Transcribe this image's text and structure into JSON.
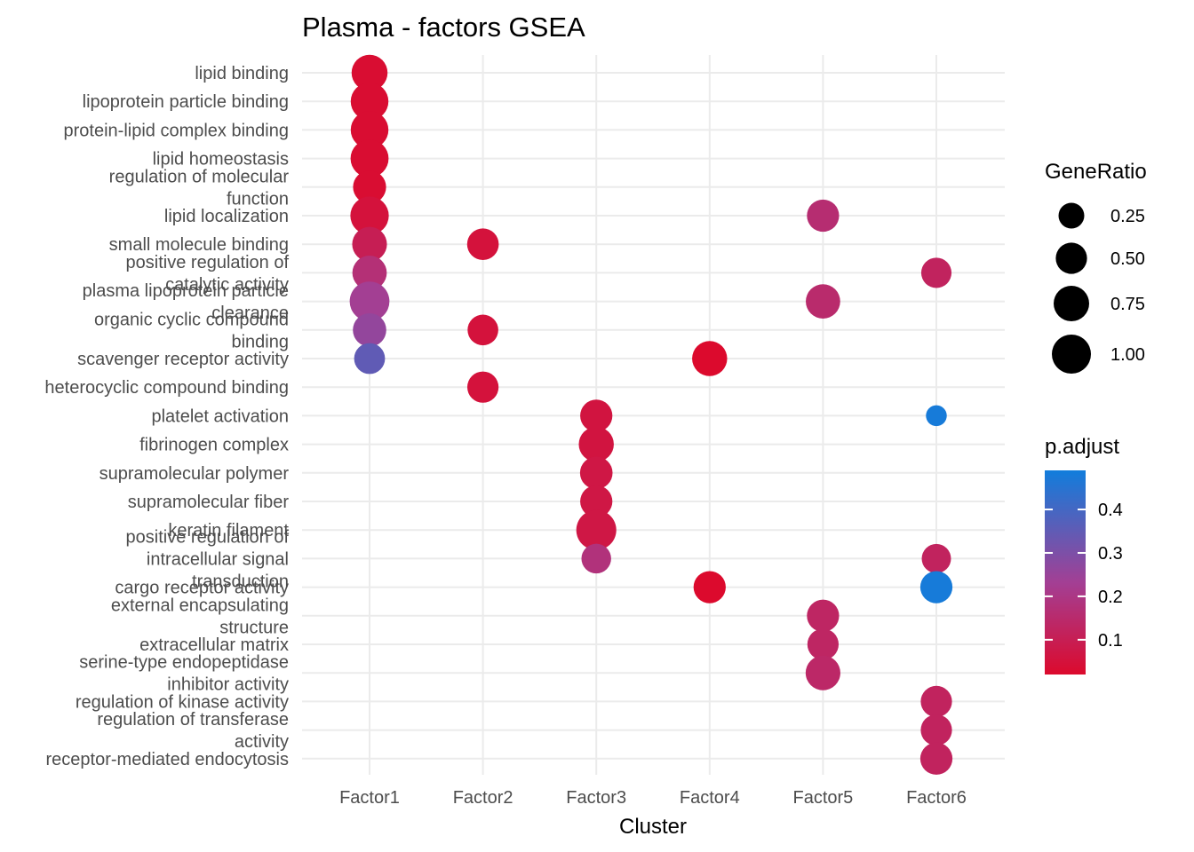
{
  "chart_data": {
    "type": "scatter",
    "title": "Plasma - factors GSEA",
    "xlabel": "Cluster",
    "ylabel": "",
    "clusters": [
      "Factor1",
      "Factor2",
      "Factor3",
      "Factor4",
      "Factor5",
      "Factor6"
    ],
    "terms": [
      [
        "lipid binding"
      ],
      [
        "lipoprotein particle binding"
      ],
      [
        "protein-lipid complex binding"
      ],
      [
        "lipid homeostasis"
      ],
      [
        "regulation of molecular",
        "function"
      ],
      [
        "lipid localization"
      ],
      [
        "small molecule binding"
      ],
      [
        "positive regulation of",
        "catalytic activity"
      ],
      [
        "plasma lipoprotein particle",
        "clearance"
      ],
      [
        "organic cyclic compound",
        "binding"
      ],
      [
        "scavenger receptor activity"
      ],
      [
        "heterocyclic compound binding"
      ],
      [
        "platelet activation"
      ],
      [
        "fibrinogen complex"
      ],
      [
        "supramolecular polymer"
      ],
      [
        "supramolecular fiber"
      ],
      [
        "keratin filament"
      ],
      [
        "positive regulation of",
        "intracellular signal",
        "transduction"
      ],
      [
        "cargo receptor activity"
      ],
      [
        "external encapsulating",
        "structure"
      ],
      [
        "extracellular matrix"
      ],
      [
        "serine-type endopeptidase",
        "inhibitor activity"
      ],
      [
        "regulation of kinase activity"
      ],
      [
        "regulation of transferase",
        "activity"
      ],
      [
        "receptor-mediated endocytosis"
      ]
    ],
    "points": [
      {
        "cluster": "Factor1",
        "term": 0,
        "gene_ratio": 0.78,
        "p_adjust": 0.03
      },
      {
        "cluster": "Factor1",
        "term": 1,
        "gene_ratio": 0.9,
        "p_adjust": 0.03
      },
      {
        "cluster": "Factor1",
        "term": 2,
        "gene_ratio": 0.9,
        "p_adjust": 0.03
      },
      {
        "cluster": "Factor1",
        "term": 3,
        "gene_ratio": 0.92,
        "p_adjust": 0.03
      },
      {
        "cluster": "Factor1",
        "term": 4,
        "gene_ratio": 0.6,
        "p_adjust": 0.03
      },
      {
        "cluster": "Factor1",
        "term": 5,
        "gene_ratio": 0.95,
        "p_adjust": 0.05
      },
      {
        "cluster": "Factor1",
        "term": 6,
        "gene_ratio": 0.7,
        "p_adjust": 0.1
      },
      {
        "cluster": "Factor1",
        "term": 7,
        "gene_ratio": 0.68,
        "p_adjust": 0.17
      },
      {
        "cluster": "Factor1",
        "term": 8,
        "gene_ratio": 1.05,
        "p_adjust": 0.23
      },
      {
        "cluster": "Factor1",
        "term": 9,
        "gene_ratio": 0.62,
        "p_adjust": 0.26
      },
      {
        "cluster": "Factor1",
        "term": 10,
        "gene_ratio": 0.48,
        "p_adjust": 0.35
      },
      {
        "cluster": "Factor2",
        "term": 6,
        "gene_ratio": 0.52,
        "p_adjust": 0.05
      },
      {
        "cluster": "Factor2",
        "term": 9,
        "gene_ratio": 0.47,
        "p_adjust": 0.05
      },
      {
        "cluster": "Factor2",
        "term": 11,
        "gene_ratio": 0.5,
        "p_adjust": 0.05
      },
      {
        "cluster": "Factor3",
        "term": 12,
        "gene_ratio": 0.55,
        "p_adjust": 0.06
      },
      {
        "cluster": "Factor3",
        "term": 13,
        "gene_ratio": 0.72,
        "p_adjust": 0.06
      },
      {
        "cluster": "Factor3",
        "term": 14,
        "gene_ratio": 0.57,
        "p_adjust": 0.07
      },
      {
        "cluster": "Factor3",
        "term": 15,
        "gene_ratio": 0.55,
        "p_adjust": 0.07
      },
      {
        "cluster": "Factor3",
        "term": 16,
        "gene_ratio": 1.07,
        "p_adjust": 0.07
      },
      {
        "cluster": "Factor3",
        "term": 17,
        "gene_ratio": 0.42,
        "p_adjust": 0.18
      },
      {
        "cluster": "Factor4",
        "term": 10,
        "gene_ratio": 0.72,
        "p_adjust": 0.02
      },
      {
        "cluster": "Factor4",
        "term": 18,
        "gene_ratio": 0.55,
        "p_adjust": 0.02
      },
      {
        "cluster": "Factor5",
        "term": 5,
        "gene_ratio": 0.55,
        "p_adjust": 0.16
      },
      {
        "cluster": "Factor5",
        "term": 8,
        "gene_ratio": 0.68,
        "p_adjust": 0.15
      },
      {
        "cluster": "Factor5",
        "term": 19,
        "gene_ratio": 0.55,
        "p_adjust": 0.13
      },
      {
        "cluster": "Factor5",
        "term": 20,
        "gene_ratio": 0.5,
        "p_adjust": 0.13
      },
      {
        "cluster": "Factor5",
        "term": 21,
        "gene_ratio": 0.7,
        "p_adjust": 0.14
      },
      {
        "cluster": "Factor6",
        "term": 7,
        "gene_ratio": 0.45,
        "p_adjust": 0.12
      },
      {
        "cluster": "Factor6",
        "term": 12,
        "gene_ratio": 0.1,
        "p_adjust": 0.48
      },
      {
        "cluster": "Factor6",
        "term": 17,
        "gene_ratio": 0.4,
        "p_adjust": 0.12
      },
      {
        "cluster": "Factor6",
        "term": 18,
        "gene_ratio": 0.55,
        "p_adjust": 0.48
      },
      {
        "cluster": "Factor6",
        "term": 22,
        "gene_ratio": 0.5,
        "p_adjust": 0.12
      },
      {
        "cluster": "Factor6",
        "term": 23,
        "gene_ratio": 0.5,
        "p_adjust": 0.12
      },
      {
        "cluster": "Factor6",
        "term": 24,
        "gene_ratio": 0.55,
        "p_adjust": 0.12
      }
    ],
    "size_legend": {
      "title": "GeneRatio",
      "values": [
        0.25,
        0.5,
        0.75,
        1.0
      ],
      "labels": [
        "0.25",
        "0.50",
        "0.75",
        "1.00"
      ]
    },
    "color_legend": {
      "title": "p.adjust",
      "ticks": [
        0.1,
        0.2,
        0.3,
        0.4
      ],
      "labels": [
        "0.1",
        "0.2",
        "0.3",
        "0.4"
      ],
      "range": [
        0.02,
        0.49
      ],
      "low_color": "#DC0A2D",
      "mid_color": "#A33F94",
      "high_color": "#117DDC"
    },
    "grid": true,
    "legend_position": "right"
  }
}
